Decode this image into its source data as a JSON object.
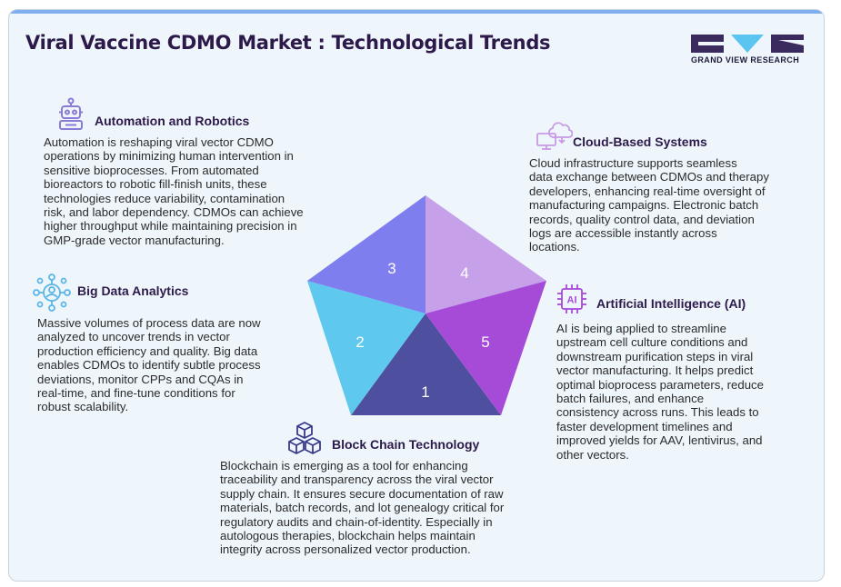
{
  "header": {
    "title": "Viral Vaccine CDMO Market : Technological Trends",
    "brand": "GRAND VIEW RESEARCH"
  },
  "colors": {
    "title": "#2d1a4a",
    "brand_dark": "#3a2a5e",
    "brand_light": "#5bc4f0",
    "segment_1": "#4e4f9e",
    "segment_2": "#5ec8ee",
    "segment_3": "#7f7eee",
    "segment_4": "#c7a0ea",
    "segment_5": "#a64ad8"
  },
  "pentagon": {
    "segments": [
      {
        "number": "1"
      },
      {
        "number": "2"
      },
      {
        "number": "3"
      },
      {
        "number": "4"
      },
      {
        "number": "5"
      }
    ]
  },
  "trends": {
    "automation": {
      "icon": "robot-icon",
      "heading": "Automation and Robotics",
      "lines": [
        "Automation is reshaping viral vector CDMO",
        "operations by minimizing human intervention in",
        "sensitive bioprocesses. From automated",
        "bioreactors to robotic fill-finish units, these",
        "technologies reduce variability, contamination",
        "risk, and labor dependency. CDMOs can achieve",
        "higher throughput while maintaining precision in",
        "GMP-grade vector manufacturing."
      ]
    },
    "big_data": {
      "icon": "analytics-network-icon",
      "heading": "Big Data Analytics",
      "lines": [
        "Massive volumes of process data are now",
        "analyzed to uncover trends in vector",
        "production efficiency and quality. Big data",
        "enables CDMOs to identify subtle process",
        "deviations, monitor CPPs and CQAs in",
        "real-time, and fine-tune conditions for",
        "robust scalability."
      ]
    },
    "blockchain": {
      "icon": "blockchain-cubes-icon",
      "heading": "Block Chain Technology",
      "lines": [
        "Blockchain is emerging as a tool for enhancing",
        "traceability and transparency across the viral vector",
        "supply chain. It ensures secure documentation of raw",
        "materials, batch records, and lot genealogy critical for",
        "regulatory audits and chain-of-identity. Especially in",
        "autologous therapies, blockchain helps maintain",
        "integrity across personalized vector production."
      ]
    },
    "cloud": {
      "icon": "cloud-computer-icon",
      "heading": "Cloud-Based Systems",
      "lines": [
        "Cloud infrastructure supports seamless",
        "data exchange between CDMOs and therapy",
        "developers, enhancing real-time oversight of",
        "manufacturing campaigns. Electronic batch",
        "records, quality control data, and deviation",
        "logs are accessible instantly across",
        "locations."
      ]
    },
    "ai": {
      "icon": "ai-chip-icon",
      "icon_label": "AI",
      "heading": "Artificial Intelligence (AI)",
      "lines": [
        "AI is being applied to streamline",
        "upstream cell culture conditions and",
        "downstream purification steps in viral",
        "vector manufacturing. It helps predict",
        "optimal bioprocess parameters, reduce",
        "batch failures, and enhance",
        "consistency across runs. This leads to",
        "faster development timelines and",
        "improved yields for AAV, lentivirus, and",
        "other vectors."
      ]
    }
  }
}
